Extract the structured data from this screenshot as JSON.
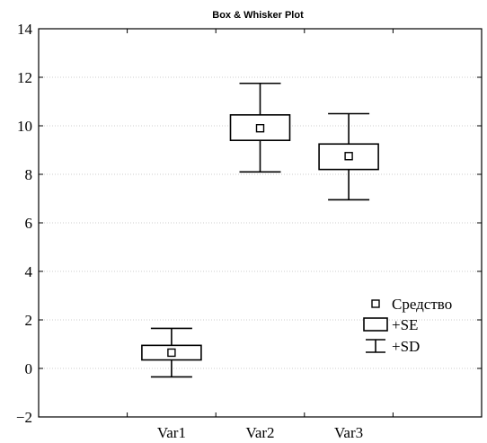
{
  "chart_data": {
    "type": "box",
    "title": "Box & Whisker Plot",
    "xlabel": "",
    "ylabel": "",
    "ylim": [
      -2,
      14
    ],
    "yticks": [
      -2,
      0,
      2,
      4,
      6,
      8,
      10,
      12,
      14
    ],
    "categories": [
      "Var1",
      "Var2",
      "Var3"
    ],
    "mean": [
      0.65,
      9.9,
      8.75
    ],
    "se_low": [
      0.35,
      9.4,
      8.2
    ],
    "se_high": [
      0.95,
      10.45,
      9.25
    ],
    "sd_low": [
      -0.35,
      8.1,
      6.95
    ],
    "sd_high": [
      1.65,
      11.75,
      10.5
    ],
    "grid": true,
    "legend_position": "right",
    "legend": [
      {
        "key": "mean",
        "label": "Средство"
      },
      {
        "key": "se",
        "label": "+SE"
      },
      {
        "key": "sd",
        "label": "+SD"
      }
    ]
  }
}
